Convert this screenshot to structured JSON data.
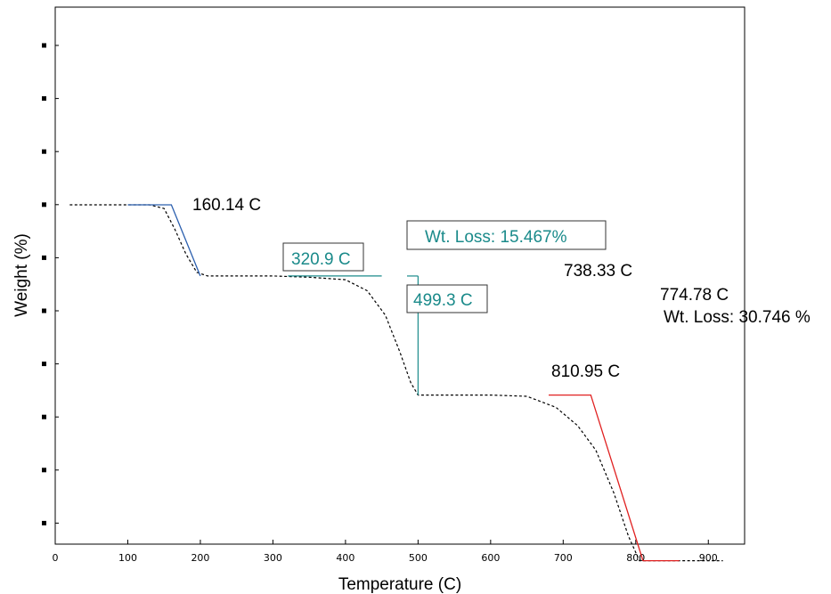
{
  "chart_data": {
    "type": "line",
    "title": "",
    "xlabel": "Temperature (C)",
    "ylabel": "Weight (%)",
    "xlim": [
      0,
      950
    ],
    "x_ticks": [
      0,
      100,
      200,
      300,
      400,
      500,
      600,
      700,
      800,
      900
    ],
    "y_tick_count": 10,
    "y_tick_labels_visible": false,
    "grid": false,
    "colors": {
      "measured_curve": "#000000",
      "step1_fit": "#2b5fae",
      "step2_fit": "#1a8a8a",
      "step3_fit": "#e02020",
      "teal_text": "#1a8a8a"
    },
    "series": [
      {
        "style": "dashed",
        "points": [
          [
            20,
            6.0
          ],
          [
            100,
            6.0
          ],
          [
            130,
            6.0
          ],
          [
            150,
            5.97
          ],
          [
            165,
            5.8
          ],
          [
            180,
            5.6
          ],
          [
            195,
            5.45
          ],
          [
            210,
            5.42
          ],
          [
            300,
            5.42
          ],
          [
            350,
            5.41
          ],
          [
            400,
            5.39
          ],
          [
            430,
            5.3
          ],
          [
            455,
            5.1
          ],
          [
            475,
            4.8
          ],
          [
            490,
            4.55
          ],
          [
            500,
            4.45
          ],
          [
            600,
            4.45
          ],
          [
            650,
            4.44
          ],
          [
            690,
            4.35
          ],
          [
            720,
            4.2
          ],
          [
            745,
            4.0
          ],
          [
            770,
            3.65
          ],
          [
            790,
            3.3
          ],
          [
            805,
            3.1
          ],
          [
            830,
            3.1
          ],
          [
            920,
            3.1
          ]
        ]
      }
    ],
    "fit_lines": [
      {
        "step": 1,
        "points": [
          [
            100,
            6.0
          ],
          [
            160,
            6.0
          ],
          [
            200,
            5.42
          ]
        ]
      },
      {
        "step": 2,
        "points": [
          [
            320.9,
            5.42
          ],
          [
            450,
            5.42
          ]
        ],
        "vertical_at_x": 500,
        "vertical_range": [
          4.45,
          5.42
        ]
      },
      {
        "step": 3,
        "points": [
          [
            680,
            4.45
          ],
          [
            738,
            4.45
          ],
          [
            810,
            3.1
          ],
          [
            860,
            3.1
          ]
        ]
      }
    ],
    "annotations": [
      {
        "text": "160.14 C",
        "x": 160.14,
        "color": "#000000",
        "boxed": false
      },
      {
        "text": "Wt. Loss: 15.467%",
        "color": "#1a8a8a",
        "boxed": true
      },
      {
        "text": "320.9 C",
        "x": 320.9,
        "color": "#1a8a8a",
        "boxed": true
      },
      {
        "text": "499.3 C",
        "x": 499.3,
        "color": "#1a8a8a",
        "boxed": true
      },
      {
        "text": "738.33 C",
        "x": 738.33,
        "color": "#000000",
        "boxed": false
      },
      {
        "text": "774.78 C",
        "x": 774.78,
        "color": "#000000",
        "boxed": false
      },
      {
        "text": "Wt. Loss: 30.746 %",
        "color": "#000000",
        "boxed": false
      },
      {
        "text": "810.95 C",
        "x": 810.95,
        "color": "#000000",
        "boxed": false
      }
    ]
  }
}
